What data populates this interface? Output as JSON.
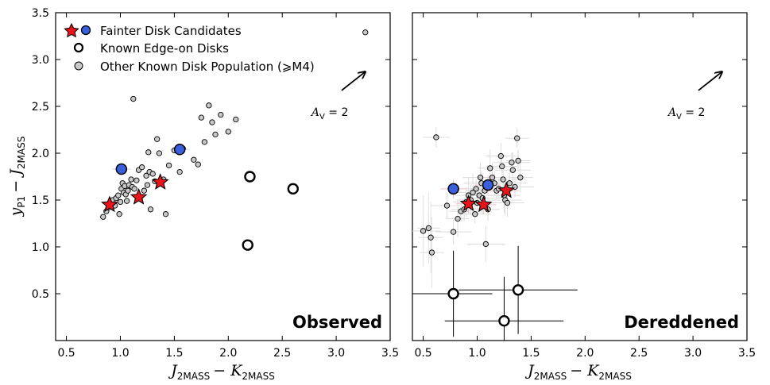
{
  "chart_data": {
    "type": "scatter",
    "shared": {
      "ylabel_main": "y",
      "ylabel_main_sub": "P1",
      "ylabel_minus": "− J",
      "ylabel_sub": "2MASS",
      "xlabel_main": "J",
      "xlabel_sub": "2MASS",
      "xlabel_minus": "− K",
      "xlabel_sub2": "2MASS",
      "xlim": [
        0.4,
        3.5
      ],
      "ylim": [
        0.0,
        3.5
      ],
      "xticks": [
        "0.5",
        "1.0",
        "1.5",
        "2.0",
        "2.5",
        "3.0",
        "3.5"
      ],
      "yticks": [
        "0.5",
        "1.0",
        "1.5",
        "2.0",
        "2.5",
        "3.0",
        "3.5"
      ],
      "reddening_label": "A",
      "reddening_sub": "V",
      "reddening_value": " = 2",
      "reddening_vector": {
        "start": [
          3.05,
          2.67
        ],
        "end": [
          3.27,
          2.87
        ]
      }
    },
    "legend": {
      "position": "top-left",
      "entries": [
        {
          "label": "Fainter Disk Candidates",
          "marker": "star+circle"
        },
        {
          "label": "Known Edge-on Disks",
          "marker": "open-circle"
        },
        {
          "label": "Other Known Disk Population (⩾M4)",
          "marker": "gray-circle"
        }
      ]
    },
    "colors": {
      "star": "#e8141a",
      "blue": "#3a5fdc",
      "gray": "#c8c8c8"
    },
    "panels": [
      {
        "label": "Observed",
        "stars": [
          [
            0.9,
            1.45
          ],
          [
            1.17,
            1.53
          ],
          [
            1.37,
            1.69
          ]
        ],
        "blue": [
          [
            1.01,
            1.83
          ],
          [
            1.55,
            2.04
          ]
        ],
        "edge_on": [
          [
            2.18,
            1.02
          ],
          [
            2.2,
            1.75
          ],
          [
            2.6,
            1.62
          ]
        ],
        "gray": [
          [
            0.84,
            1.32
          ],
          [
            0.87,
            1.38
          ],
          [
            0.89,
            1.42
          ],
          [
            0.91,
            1.47
          ],
          [
            0.93,
            1.5
          ],
          [
            0.95,
            1.44
          ],
          [
            0.96,
            1.52
          ],
          [
            0.98,
            1.55
          ],
          [
            0.99,
            1.35
          ],
          [
            1.0,
            1.48
          ],
          [
            1.01,
            1.62
          ],
          [
            1.02,
            1.68
          ],
          [
            1.03,
            1.58
          ],
          [
            1.04,
            1.65
          ],
          [
            1.05,
            1.56
          ],
          [
            1.06,
            1.49
          ],
          [
            1.07,
            1.6
          ],
          [
            1.08,
            1.66
          ],
          [
            1.1,
            1.72
          ],
          [
            1.11,
            1.64
          ],
          [
            1.12,
            2.58
          ],
          [
            1.13,
            1.62
          ],
          [
            1.15,
            1.71
          ],
          [
            1.17,
            1.82
          ],
          [
            1.2,
            1.85
          ],
          [
            1.22,
            1.6
          ],
          [
            1.24,
            1.76
          ],
          [
            1.25,
            1.66
          ],
          [
            1.26,
            2.01
          ],
          [
            1.27,
            1.8
          ],
          [
            1.28,
            1.4
          ],
          [
            1.3,
            1.78
          ],
          [
            1.32,
            1.7
          ],
          [
            1.34,
            2.15
          ],
          [
            1.36,
            2.0
          ],
          [
            1.4,
            1.72
          ],
          [
            1.42,
            1.35
          ],
          [
            1.45,
            1.87
          ],
          [
            1.5,
            2.03
          ],
          [
            1.55,
            1.8
          ],
          [
            1.58,
            2.05
          ],
          [
            1.68,
            1.93
          ],
          [
            1.72,
            1.88
          ],
          [
            1.75,
            2.38
          ],
          [
            1.78,
            2.12
          ],
          [
            1.82,
            2.51
          ],
          [
            1.85,
            2.33
          ],
          [
            1.88,
            2.2
          ],
          [
            1.93,
            2.41
          ],
          [
            2.0,
            2.23
          ],
          [
            2.07,
            2.36
          ],
          [
            3.27,
            3.29
          ]
        ]
      },
      {
        "label": "Dereddened",
        "stars": [
          [
            0.92,
            1.46
          ],
          [
            1.06,
            1.45
          ],
          [
            1.27,
            1.6
          ]
        ],
        "blue": [
          [
            0.78,
            1.62
          ],
          [
            1.1,
            1.66
          ]
        ],
        "edge_on": [
          [
            0.78,
            0.5,
            0.36,
            0.46
          ],
          [
            1.25,
            0.21,
            0.55,
            0.47
          ],
          [
            1.38,
            0.54,
            0.55,
            0.47
          ]
        ],
        "gray": [
          [
            0.5,
            1.17
          ],
          [
            0.55,
            1.2
          ],
          [
            0.57,
            1.1
          ],
          [
            0.58,
            0.94
          ],
          [
            0.62,
            2.17
          ],
          [
            0.72,
            1.44
          ],
          [
            0.78,
            1.16
          ],
          [
            0.82,
            1.3
          ],
          [
            0.85,
            1.38
          ],
          [
            0.88,
            1.4
          ],
          [
            0.9,
            1.48
          ],
          [
            0.92,
            1.55
          ],
          [
            0.94,
            1.5
          ],
          [
            0.96,
            1.58
          ],
          [
            0.98,
            1.35
          ],
          [
            0.99,
            1.62
          ],
          [
            1.0,
            1.47
          ],
          [
            1.02,
            1.55
          ],
          [
            1.03,
            1.74
          ],
          [
            1.04,
            1.68
          ],
          [
            1.05,
            1.52
          ],
          [
            1.07,
            1.6
          ],
          [
            1.08,
            1.03
          ],
          [
            1.1,
            1.4
          ],
          [
            1.12,
            1.84
          ],
          [
            1.14,
            1.74
          ],
          [
            1.16,
            1.68
          ],
          [
            1.18,
            1.6
          ],
          [
            1.2,
            1.62
          ],
          [
            1.22,
            1.97
          ],
          [
            1.23,
            1.86
          ],
          [
            1.24,
            1.72
          ],
          [
            1.25,
            1.55
          ],
          [
            1.26,
            1.5
          ],
          [
            1.28,
            1.47
          ],
          [
            1.3,
            1.68
          ],
          [
            1.32,
            1.9
          ],
          [
            1.33,
            1.82
          ],
          [
            1.35,
            1.64
          ],
          [
            1.37,
            2.16
          ],
          [
            1.38,
            1.92
          ],
          [
            1.4,
            1.74
          ]
        ]
      }
    ]
  }
}
